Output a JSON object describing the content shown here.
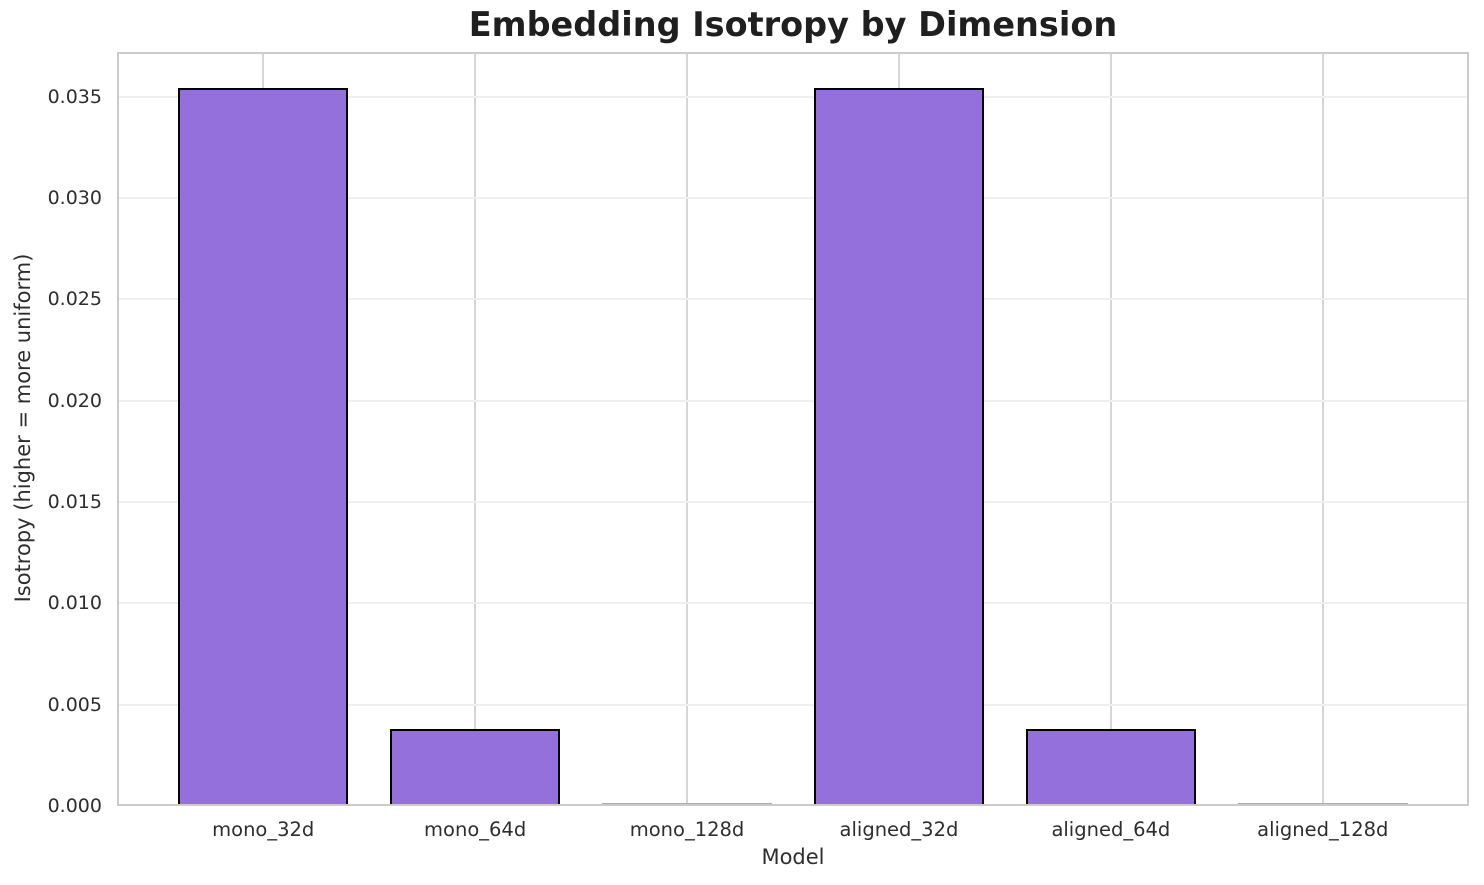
{
  "chart_data": {
    "type": "bar",
    "title": "Embedding Isotropy by Dimension",
    "xlabel": "Model",
    "ylabel": "Isotropy (higher = more uniform)",
    "categories": [
      "mono_32d",
      "mono_64d",
      "mono_128d",
      "aligned_32d",
      "aligned_64d",
      "aligned_128d"
    ],
    "values": [
      0.0354,
      0.0038,
      4e-05,
      0.0354,
      0.0038,
      4e-05
    ],
    "ylim": [
      0,
      0.0372
    ],
    "ytick_labels": [
      "0.000",
      "0.005",
      "0.010",
      "0.015",
      "0.020",
      "0.025",
      "0.030",
      "0.035"
    ],
    "grid": true,
    "legend": "none",
    "bar_color": "#9370db",
    "bar_edge_color": "#000000"
  }
}
